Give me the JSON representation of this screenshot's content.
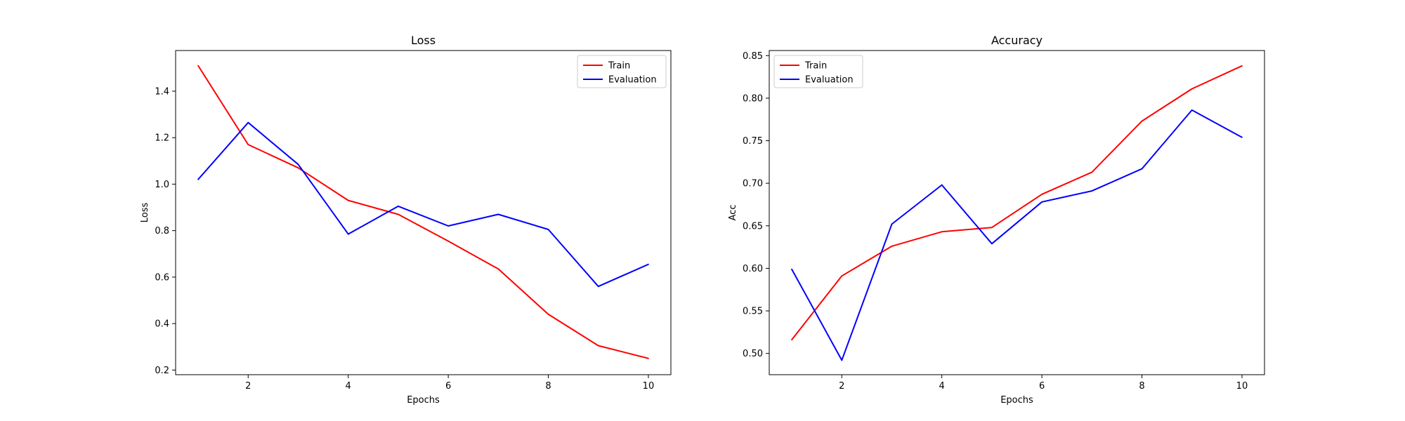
{
  "chart_data": [
    {
      "type": "line",
      "title": "Loss",
      "xlabel": "Epochs",
      "ylabel": "Loss",
      "x": [
        1,
        2,
        3,
        4,
        5,
        6,
        7,
        8,
        9,
        10
      ],
      "series": [
        {
          "name": "Train",
          "color": "#ff0000",
          "values": [
            1.51,
            1.17,
            1.07,
            0.93,
            0.87,
            0.755,
            0.635,
            0.44,
            0.305,
            0.25
          ]
        },
        {
          "name": "Evaluation",
          "color": "#0000ff",
          "values": [
            1.02,
            1.265,
            1.085,
            0.785,
            0.905,
            0.82,
            0.87,
            0.805,
            0.56,
            0.655
          ]
        }
      ],
      "xlim": [
        0.55,
        10.45
      ],
      "ylim": [
        0.18,
        1.575
      ],
      "xticks": [
        2,
        4,
        6,
        8,
        10
      ],
      "xtick_labels": [
        "2",
        "4",
        "6",
        "8",
        "10"
      ],
      "yticks": [
        0.2,
        0.4,
        0.6,
        0.8,
        1.0,
        1.2,
        1.4
      ],
      "ytick_labels": [
        "0.2",
        "0.4",
        "0.6",
        "0.8",
        "1.0",
        "1.2",
        "1.4"
      ],
      "legend_position": "top-right",
      "grid": false
    },
    {
      "type": "line",
      "title": "Accuracy",
      "xlabel": "Epochs",
      "ylabel": "Acc",
      "x": [
        1,
        2,
        3,
        4,
        5,
        6,
        7,
        8,
        9,
        10
      ],
      "series": [
        {
          "name": "Train",
          "color": "#ff0000",
          "values": [
            0.516,
            0.591,
            0.626,
            0.643,
            0.648,
            0.687,
            0.713,
            0.773,
            0.811,
            0.838
          ]
        },
        {
          "name": "Evaluation",
          "color": "#0000ff",
          "values": [
            0.599,
            0.492,
            0.652,
            0.698,
            0.629,
            0.678,
            0.691,
            0.717,
            0.786,
            0.754
          ]
        }
      ],
      "xlim": [
        0.55,
        10.45
      ],
      "ylim": [
        0.475,
        0.856
      ],
      "xticks": [
        2,
        4,
        6,
        8,
        10
      ],
      "xtick_labels": [
        "2",
        "4",
        "6",
        "8",
        "10"
      ],
      "yticks": [
        0.5,
        0.55,
        0.6,
        0.65,
        0.7,
        0.75,
        0.8,
        0.85
      ],
      "ytick_labels": [
        "0.50",
        "0.55",
        "0.60",
        "0.65",
        "0.70",
        "0.75",
        "0.80",
        "0.85"
      ],
      "legend_position": "top-left",
      "grid": false
    }
  ]
}
